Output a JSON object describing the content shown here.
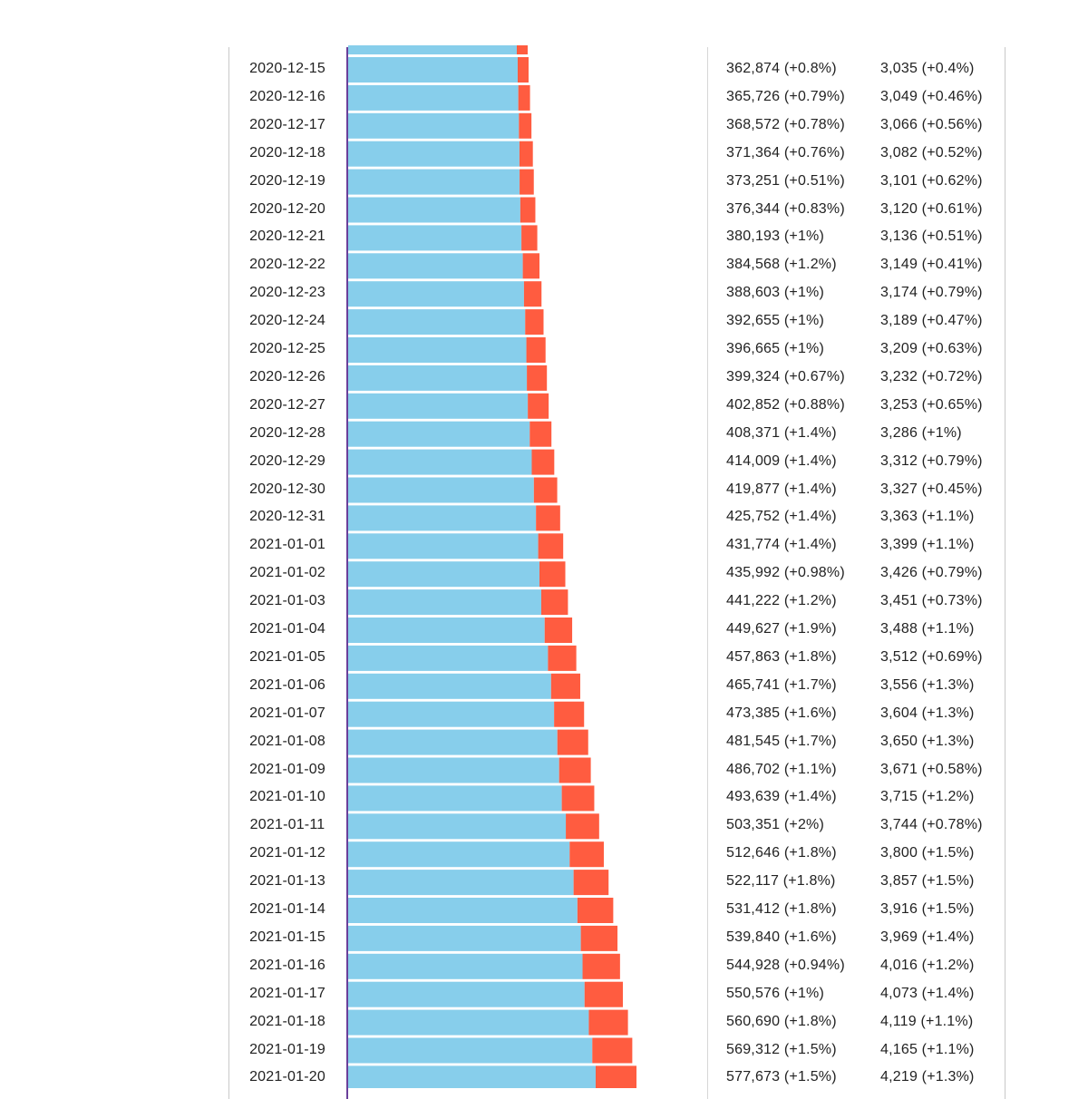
{
  "chart_data": {
    "type": "bar",
    "orientation": "horizontal-stacked",
    "colors": {
      "active": "#87ceeb",
      "recovered_or_other": "#ff5c40",
      "axis": "#6a3f9a"
    },
    "rows": [
      {
        "date": "2020-12-15",
        "cases": 362874,
        "cases_text": "362,874 (+0.8%)",
        "deaths_text": "3,035 (+0.4%)"
      },
      {
        "date": "2020-12-16",
        "cases": 365726,
        "cases_text": "365,726 (+0.79%)",
        "deaths_text": "3,049 (+0.46%)"
      },
      {
        "date": "2020-12-17",
        "cases": 368572,
        "cases_text": "368,572 (+0.78%)",
        "deaths_text": "3,066 (+0.56%)"
      },
      {
        "date": "2020-12-18",
        "cases": 371364,
        "cases_text": "371,364 (+0.76%)",
        "deaths_text": "3,082 (+0.52%)"
      },
      {
        "date": "2020-12-19",
        "cases": 373251,
        "cases_text": "373,251 (+0.51%)",
        "deaths_text": "3,101 (+0.62%)"
      },
      {
        "date": "2020-12-20",
        "cases": 376344,
        "cases_text": "376,344 (+0.83%)",
        "deaths_text": "3,120 (+0.61%)"
      },
      {
        "date": "2020-12-21",
        "cases": 380193,
        "cases_text": "380,193 (+1%)",
        "deaths_text": "3,136 (+0.51%)"
      },
      {
        "date": "2020-12-22",
        "cases": 384568,
        "cases_text": "384,568 (+1.2%)",
        "deaths_text": "3,149 (+0.41%)"
      },
      {
        "date": "2020-12-23",
        "cases": 388603,
        "cases_text": "388,603 (+1%)",
        "deaths_text": "3,174 (+0.79%)"
      },
      {
        "date": "2020-12-24",
        "cases": 392655,
        "cases_text": "392,655 (+1%)",
        "deaths_text": "3,189 (+0.47%)"
      },
      {
        "date": "2020-12-25",
        "cases": 396665,
        "cases_text": "396,665 (+1%)",
        "deaths_text": "3,209 (+0.63%)"
      },
      {
        "date": "2020-12-26",
        "cases": 399324,
        "cases_text": "399,324 (+0.67%)",
        "deaths_text": "3,232 (+0.72%)"
      },
      {
        "date": "2020-12-27",
        "cases": 402852,
        "cases_text": "402,852 (+0.88%)",
        "deaths_text": "3,253 (+0.65%)"
      },
      {
        "date": "2020-12-28",
        "cases": 408371,
        "cases_text": "408,371 (+1.4%)",
        "deaths_text": "3,286 (+1%)"
      },
      {
        "date": "2020-12-29",
        "cases": 414009,
        "cases_text": "414,009 (+1.4%)",
        "deaths_text": "3,312 (+0.79%)"
      },
      {
        "date": "2020-12-30",
        "cases": 419877,
        "cases_text": "419,877 (+1.4%)",
        "deaths_text": "3,327 (+0.45%)"
      },
      {
        "date": "2020-12-31",
        "cases": 425752,
        "cases_text": "425,752 (+1.4%)",
        "deaths_text": "3,363 (+1.1%)"
      },
      {
        "date": "2021-01-01",
        "cases": 431774,
        "cases_text": "431,774 (+1.4%)",
        "deaths_text": "3,399 (+1.1%)"
      },
      {
        "date": "2021-01-02",
        "cases": 435992,
        "cases_text": "435,992 (+0.98%)",
        "deaths_text": "3,426 (+0.79%)"
      },
      {
        "date": "2021-01-03",
        "cases": 441222,
        "cases_text": "441,222 (+1.2%)",
        "deaths_text": "3,451 (+0.73%)"
      },
      {
        "date": "2021-01-04",
        "cases": 449627,
        "cases_text": "449,627 (+1.9%)",
        "deaths_text": "3,488 (+1.1%)"
      },
      {
        "date": "2021-01-05",
        "cases": 457863,
        "cases_text": "457,863 (+1.8%)",
        "deaths_text": "3,512 (+0.69%)"
      },
      {
        "date": "2021-01-06",
        "cases": 465741,
        "cases_text": "465,741 (+1.7%)",
        "deaths_text": "3,556 (+1.3%)"
      },
      {
        "date": "2021-01-07",
        "cases": 473385,
        "cases_text": "473,385 (+1.6%)",
        "deaths_text": "3,604 (+1.3%)"
      },
      {
        "date": "2021-01-08",
        "cases": 481545,
        "cases_text": "481,545 (+1.7%)",
        "deaths_text": "3,650 (+1.3%)"
      },
      {
        "date": "2021-01-09",
        "cases": 486702,
        "cases_text": "486,702 (+1.1%)",
        "deaths_text": "3,671 (+0.58%)"
      },
      {
        "date": "2021-01-10",
        "cases": 493639,
        "cases_text": "493,639 (+1.4%)",
        "deaths_text": "3,715 (+1.2%)"
      },
      {
        "date": "2021-01-11",
        "cases": 503351,
        "cases_text": "503,351 (+2%)",
        "deaths_text": "3,744 (+0.78%)"
      },
      {
        "date": "2021-01-12",
        "cases": 512646,
        "cases_text": "512,646 (+1.8%)",
        "deaths_text": "3,800 (+1.5%)"
      },
      {
        "date": "2021-01-13",
        "cases": 522117,
        "cases_text": "522,117 (+1.8%)",
        "deaths_text": "3,857 (+1.5%)"
      },
      {
        "date": "2021-01-14",
        "cases": 531412,
        "cases_text": "531,412 (+1.8%)",
        "deaths_text": "3,916 (+1.5%)"
      },
      {
        "date": "2021-01-15",
        "cases": 539840,
        "cases_text": "539,840 (+1.6%)",
        "deaths_text": "3,969 (+1.4%)"
      },
      {
        "date": "2021-01-16",
        "cases": 544928,
        "cases_text": "544,928 (+0.94%)",
        "deaths_text": "4,016 (+1.2%)"
      },
      {
        "date": "2021-01-17",
        "cases": 550576,
        "cases_text": "550,576 (+1%)",
        "deaths_text": "4,073 (+1.4%)"
      },
      {
        "date": "2021-01-18",
        "cases": 560690,
        "cases_text": "560,690 (+1.8%)",
        "deaths_text": "4,119 (+1.1%)"
      },
      {
        "date": "2021-01-19",
        "cases": 569312,
        "cases_text": "569,312 (+1.5%)",
        "deaths_text": "4,165 (+1.1%)"
      },
      {
        "date": "2021-01-20",
        "cases": 577673,
        "cases_text": "577,673 (+1.5%)",
        "deaths_text": "4,219 (+1.3%)"
      }
    ]
  }
}
